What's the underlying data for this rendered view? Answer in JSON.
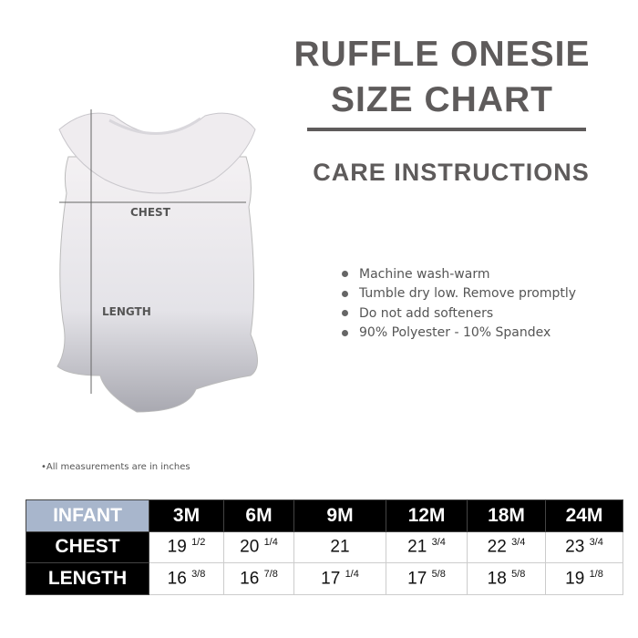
{
  "title_line1": "RUFFLE ONESIE",
  "title_line2": "SIZE CHART",
  "care_heading": "CARE INSTRUCTIONS",
  "care_items": [
    "Machine wash-warm",
    "Tumble dry low. Remove promptly",
    "Do not add softeners",
    "90% Polyester - 10% Spandex"
  ],
  "diagram": {
    "chest_label": "CHEST",
    "length_label": "LENGTH"
  },
  "note": "•All measurements are in inches",
  "table": {
    "corner": "INFANT",
    "sizes": [
      "3M",
      "6M",
      "9M",
      "12M",
      "18M",
      "24M"
    ],
    "rows": [
      {
        "label": "CHEST",
        "values": [
          [
            "19",
            "1/2"
          ],
          [
            "20",
            "1/4"
          ],
          [
            "21",
            ""
          ],
          [
            "21",
            "3/4"
          ],
          [
            "22",
            "3/4"
          ],
          [
            "23",
            "3/4"
          ]
        ]
      },
      {
        "label": "LENGTH",
        "values": [
          [
            "16",
            "3/8"
          ],
          [
            "16",
            "7/8"
          ],
          [
            "17",
            "1/4"
          ],
          [
            "17",
            "5/8"
          ],
          [
            "18",
            "5/8"
          ],
          [
            "19",
            "1/8"
          ]
        ]
      }
    ]
  },
  "colors": {
    "title": "#5e5b5b",
    "header_bg": "#000000",
    "infant_bg": "#a8b6cc"
  }
}
